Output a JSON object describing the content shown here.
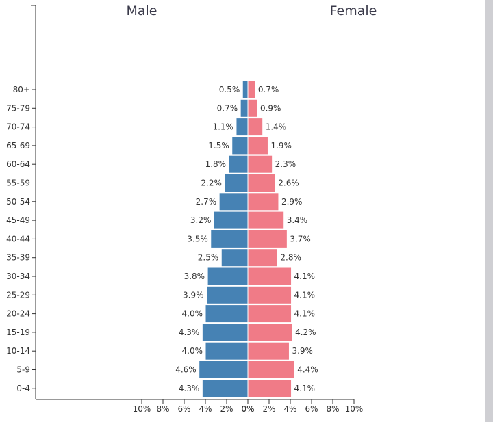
{
  "chart_data": {
    "type": "bar",
    "orientation": "horizontal",
    "subtype": "population-pyramid",
    "left_header": "Male",
    "right_header": "Female",
    "categories": [
      "80+",
      "75-79",
      "70-74",
      "65-69",
      "60-64",
      "55-59",
      "50-54",
      "45-49",
      "40-44",
      "35-39",
      "30-34",
      "25-29",
      "20-24",
      "15-19",
      "10-14",
      "5-9",
      "0-4"
    ],
    "series": [
      {
        "name": "Male",
        "values": [
          0.5,
          0.7,
          1.1,
          1.5,
          1.8,
          2.2,
          2.7,
          3.2,
          3.5,
          2.5,
          3.8,
          3.9,
          4.0,
          4.3,
          4.0,
          4.6,
          4.3
        ],
        "labels": [
          "0.5%",
          "0.7%",
          "1.1%",
          "1.5%",
          "1.8%",
          "2.2%",
          "2.7%",
          "3.2%",
          "3.5%",
          "2.5%",
          "3.8%",
          "3.9%",
          "4.0%",
          "4.3%",
          "4.0%",
          "4.6%",
          "4.3%"
        ]
      },
      {
        "name": "Female",
        "values": [
          0.7,
          0.9,
          1.4,
          1.9,
          2.3,
          2.6,
          2.9,
          3.4,
          3.7,
          2.8,
          4.1,
          4.1,
          4.1,
          4.2,
          3.9,
          4.4,
          4.1
        ],
        "labels": [
          "0.7%",
          "0.9%",
          "1.4%",
          "1.9%",
          "2.3%",
          "2.6%",
          "2.9%",
          "3.4%",
          "3.7%",
          "2.8%",
          "4.1%",
          "4.1%",
          "4.1%",
          "4.2%",
          "3.9%",
          "4.4%",
          "4.1%"
        ]
      }
    ],
    "xlim": [
      -10,
      10
    ],
    "x_ticks_left": [
      "10%",
      "8%",
      "6%",
      "4%",
      "2%",
      "0%"
    ],
    "x_ticks_right": [
      "0%",
      "2%",
      "4%",
      "6%",
      "8%",
      "10%"
    ],
    "x_tick_values_left": [
      10,
      8,
      6,
      4,
      2,
      0
    ],
    "x_tick_values_right": [
      0,
      2,
      4,
      6,
      8,
      10
    ],
    "colors": {
      "male": "#4682b4",
      "female": "#f07b87",
      "axis": "#333333"
    },
    "grid": false,
    "legend": "none"
  }
}
